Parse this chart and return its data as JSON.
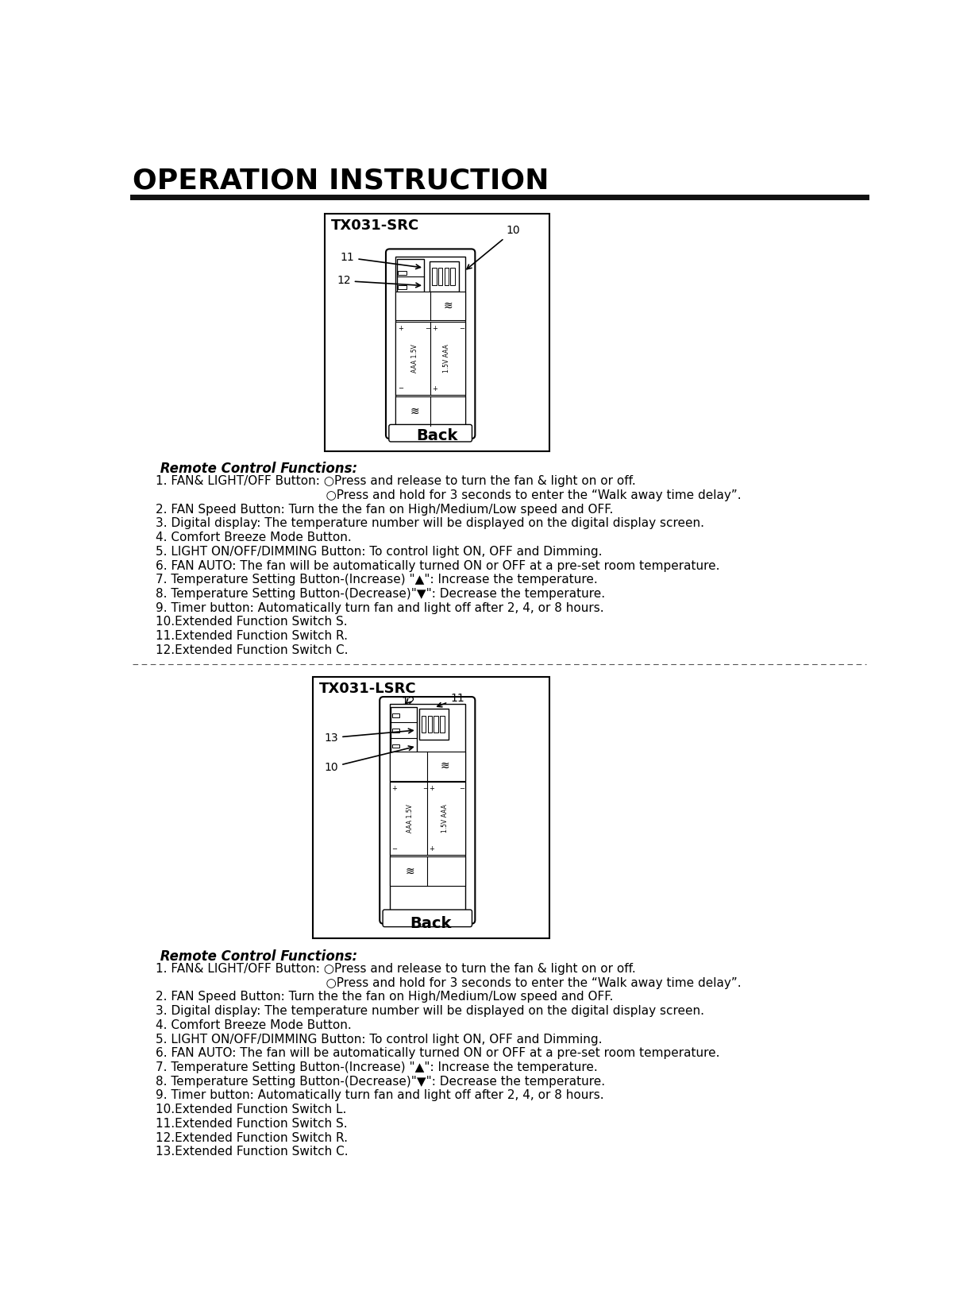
{
  "title": "OPERATION INSTRUCTION",
  "bg_color": "#ffffff",
  "text_color": "#000000",
  "section1_box_title": "TX031-SRC",
  "section2_box_title": "TX031-LSRC",
  "back_label": "Back",
  "remote_functions_title": " Remote Control Functions:",
  "section1_lines": [
    "1. FAN& LIGHT/OFF Button: ○Press and release to turn the fan & light on or off.",
    "                                            ○Press and hold for 3 seconds to enter the “Walk away time delay”.",
    "2. FAN Speed Button: Turn the the fan on High/Medium/Low speed and OFF.",
    "3. Digital display: The temperature number will be displayed on the digital display screen.",
    "4. Comfort Breeze Mode Button.",
    "5. LIGHT ON/OFF/DIMMING Button: To control light ON, OFF and Dimming.",
    "6. FAN AUTO: The fan will be automatically turned ON or OFF at a pre-set room temperature.",
    "7. Temperature Setting Button-(Increase) \"▲\": Increase the temperature.",
    "8. Temperature Setting Button-(Decrease)\"▼\": Decrease the temperature.",
    "9. Timer button: Automatically turn fan and light off after 2, 4, or 8 hours.",
    "10.Extended Function Switch S.",
    "11.Extended Function Switch R.",
    "12.Extended Function Switch C."
  ],
  "section2_lines": [
    "1. FAN& LIGHT/OFF Button: ○Press and release to turn the fan & light on or off.",
    "                                            ○Press and hold for 3 seconds to enter the “Walk away time delay”.",
    "2. FAN Speed Button: Turn the the fan on High/Medium/Low speed and OFF.",
    "3. Digital display: The temperature number will be displayed on the digital display screen.",
    "4. Comfort Breeze Mode Button.",
    "5. LIGHT ON/OFF/DIMMING Button: To control light ON, OFF and Dimming.",
    "6. FAN AUTO: The fan will be automatically turned ON or OFF at a pre-set room temperature.",
    "7. Temperature Setting Button-(Increase) \"▲\": Increase the temperature.",
    "8. Temperature Setting Button-(Decrease)\"▼\": Decrease the temperature.",
    "9. Timer button: Automatically turn fan and light off after 2, 4, or 8 hours.",
    "10.Extended Function Switch L.",
    "11.Extended Function Switch S.",
    "12.Extended Function Switch R.",
    "13.Extended Function Switch C."
  ]
}
